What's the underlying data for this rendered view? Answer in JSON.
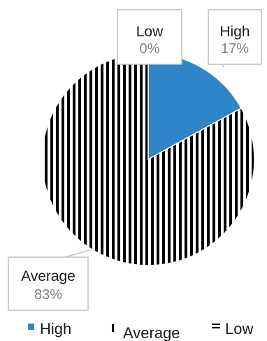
{
  "chart_data": {
    "type": "pie",
    "slices": [
      {
        "label": "High",
        "value": 17,
        "display": "17%",
        "color": "#2e86c8",
        "pattern": "solid"
      },
      {
        "label": "Average",
        "value": 83,
        "display": "83%",
        "color": "#000000",
        "pattern": "vertical-stripes"
      },
      {
        "label": "Low",
        "value": 0,
        "display": "0%",
        "color": "#000000",
        "pattern": "horizontal-stripes"
      }
    ],
    "legend": {
      "position": "bottom",
      "items": [
        "High",
        "Average",
        "Low"
      ]
    },
    "data_labels": "callouts with category name and percentage"
  }
}
